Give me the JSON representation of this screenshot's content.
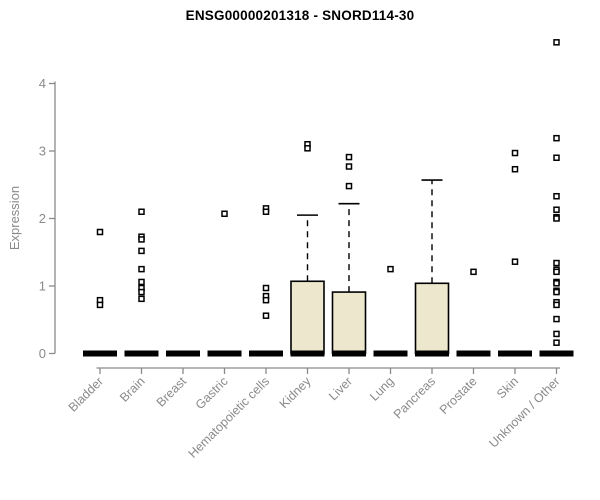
{
  "chart_data": {
    "type": "box",
    "title": "ENSG00000201318 - SNORD114-30",
    "ylabel": "Expression",
    "xlabel": "",
    "ylim": [
      0,
      4.8
    ],
    "yticks": [
      0,
      1,
      2,
      3,
      4
    ],
    "grid": false,
    "legend": "none",
    "categories": [
      "Bladder",
      "Brain",
      "Breast",
      "Gastric",
      "Hematopoietic cells",
      "Kidney",
      "Liver",
      "Lung",
      "Pancreas",
      "Prostate",
      "Skin",
      "Unknown / Other"
    ],
    "series": [
      {
        "category": "Bladder",
        "median": 0,
        "points": [
          1.8,
          0.79,
          0.72
        ]
      },
      {
        "category": "Brain",
        "median": 0,
        "points": [
          2.1,
          1.73,
          1.69,
          1.52,
          1.25,
          1.06,
          0.97,
          0.91,
          0.81
        ]
      },
      {
        "category": "Breast",
        "median": 0,
        "points": []
      },
      {
        "category": "Gastric",
        "median": 0,
        "points": [
          2.07
        ]
      },
      {
        "category": "Hematopoietic cells",
        "median": 0,
        "points": [
          2.15,
          2.1,
          0.97,
          0.85,
          0.79,
          0.56
        ]
      },
      {
        "category": "Kidney",
        "median": 0,
        "q1": 0,
        "q3": 1.07,
        "whisker_high": 2.05,
        "points": [
          3.1,
          3.04
        ]
      },
      {
        "category": "Liver",
        "median": 0,
        "q1": 0,
        "q3": 0.91,
        "whisker_high": 2.22,
        "points": [
          2.91,
          2.77,
          2.48
        ]
      },
      {
        "category": "Lung",
        "median": 0,
        "points": [
          1.25
        ]
      },
      {
        "category": "Pancreas",
        "median": 0,
        "q1": 0,
        "q3": 1.04,
        "whisker_high": 2.57,
        "points": []
      },
      {
        "category": "Prostate",
        "median": 0,
        "points": [
          1.21
        ]
      },
      {
        "category": "Skin",
        "median": 0,
        "points": [
          2.97,
          2.73,
          1.36
        ]
      },
      {
        "category": "Unknown / Other",
        "median": 0,
        "points": [
          4.61,
          3.19,
          2.9,
          2.33,
          2.13,
          2.02,
          2.0,
          1.34,
          1.24,
          1.21,
          1.06,
          1.04,
          0.93,
          0.91,
          0.76,
          0.72,
          0.51,
          0.29,
          0.16
        ]
      }
    ],
    "colors": {
      "box_fill": "#EDE8CD",
      "box_stroke": "#000000",
      "median": "#000000",
      "whisker": "#000000",
      "point_stroke": "#000000",
      "point_fill": "#ffffff",
      "axis": "#8a8a8a",
      "tick_label": "#8a8a8a",
      "title": "#000000"
    }
  }
}
